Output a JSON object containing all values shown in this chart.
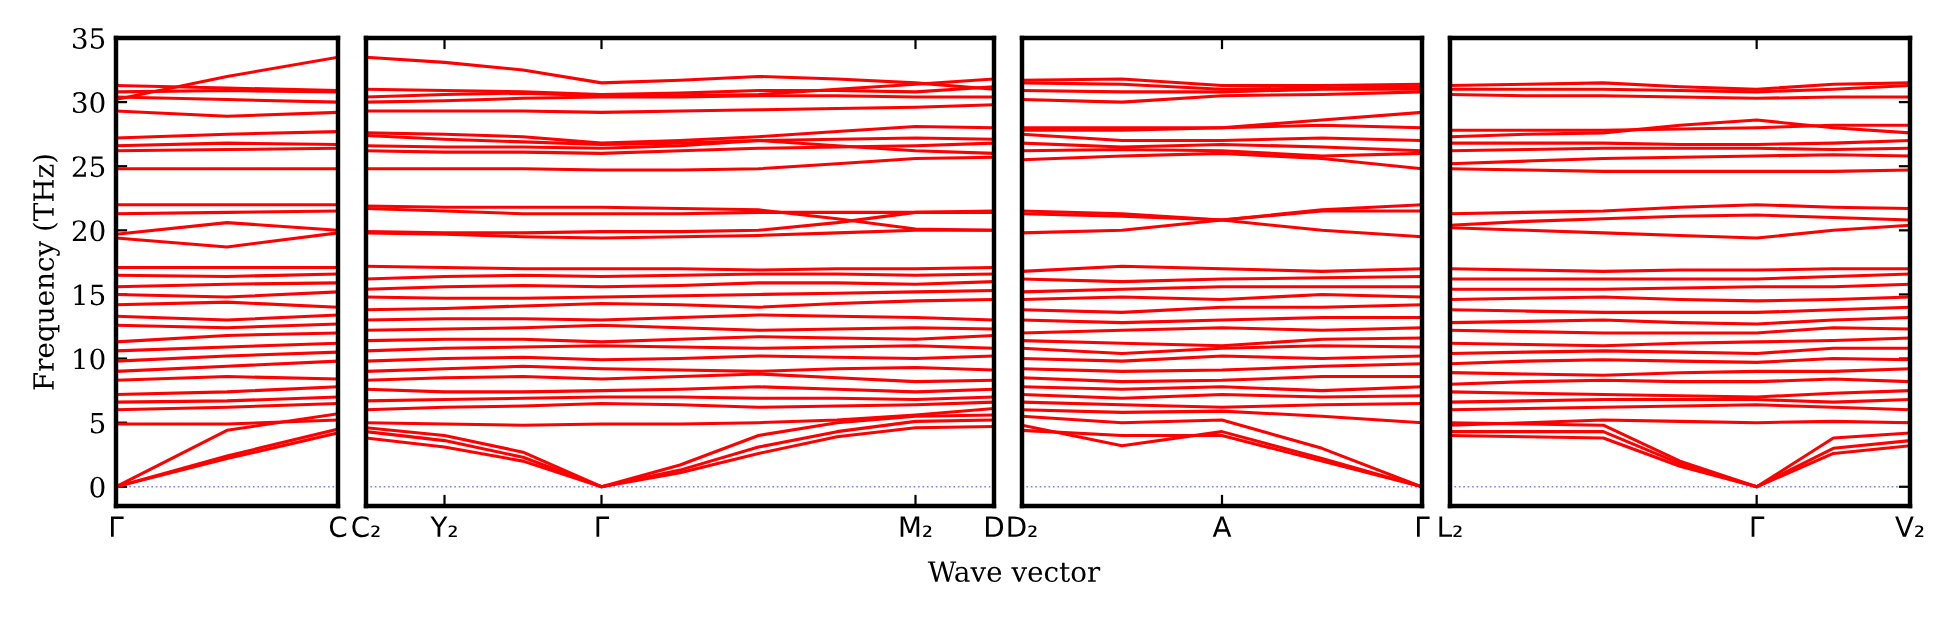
{
  "chart_data": [
    {
      "type": "line",
      "ylabel": "Frequency (THz)",
      "color": "#ff0000",
      "grid": false,
      "marker": "none",
      "line_style": "solid",
      "categories": [
        "Γ",
        null,
        "C"
      ],
      "ylim": [
        -1.5,
        35
      ],
      "yticks": [
        0,
        5,
        10,
        15,
        20,
        25,
        30,
        35
      ],
      "ref_lines": [
        {
          "axis": "y",
          "value": 0,
          "color": "#8080ff",
          "line_style": "dotted"
        }
      ],
      "series": [
        {
          "values": [
            0,
            2.2,
            4.2
          ]
        },
        {
          "values": [
            0,
            2.4,
            4.5
          ]
        },
        {
          "values": [
            0,
            4.4,
            5.7
          ]
        },
        {
          "values": [
            4.9,
            4.9,
            5.2
          ]
        },
        {
          "values": [
            6.0,
            6.2,
            6.5
          ]
        },
        {
          "values": [
            6.6,
            6.7,
            7.0
          ]
        },
        {
          "values": [
            7.2,
            7.4,
            7.8
          ]
        },
        {
          "values": [
            8.3,
            8.6,
            8.4
          ]
        },
        {
          "values": [
            9.0,
            9.4,
            9.8
          ]
        },
        {
          "values": [
            9.8,
            10.2,
            10.5
          ]
        },
        {
          "values": [
            10.6,
            10.9,
            11.2
          ]
        },
        {
          "values": [
            11.3,
            11.8,
            12.0
          ]
        },
        {
          "values": [
            12.6,
            12.4,
            12.7
          ]
        },
        {
          "values": [
            13.3,
            13.0,
            13.4
          ]
        },
        {
          "values": [
            14.2,
            14.4,
            14.0
          ]
        },
        {
          "values": [
            15.0,
            14.8,
            15.2
          ]
        },
        {
          "values": [
            15.6,
            15.8,
            15.9
          ]
        },
        {
          "values": [
            16.5,
            16.4,
            16.6
          ]
        },
        {
          "values": [
            17.1,
            17.1,
            17.1
          ]
        },
        {
          "values": [
            19.4,
            18.7,
            19.8
          ]
        },
        {
          "values": [
            19.7,
            20.6,
            20.0
          ]
        },
        {
          "values": [
            21.3,
            21.4,
            21.5
          ]
        },
        {
          "values": [
            22.0,
            22.0,
            22.0
          ]
        },
        {
          "values": [
            24.8,
            24.8,
            24.8
          ]
        },
        {
          "values": [
            26.2,
            26.3,
            26.4
          ]
        },
        {
          "values": [
            26.6,
            26.8,
            26.7
          ]
        },
        {
          "values": [
            27.2,
            27.5,
            27.7
          ]
        },
        {
          "values": [
            29.3,
            28.9,
            29.2
          ]
        },
        {
          "values": [
            30.4,
            30.2,
            30.0
          ]
        },
        {
          "values": [
            30.8,
            30.9,
            30.8
          ]
        },
        {
          "values": [
            31.3,
            31.1,
            30.9
          ]
        },
        {
          "values": [
            30.2,
            32.0,
            33.5
          ]
        }
      ]
    },
    {
      "type": "line",
      "xlabel": "Wave vector",
      "color": "#ff0000",
      "grid": false,
      "marker": "none",
      "line_style": "solid",
      "tick_labels": "x",
      "categories": [
        "C₂",
        "Y₂",
        null,
        "Γ",
        null,
        null,
        null,
        "M₂",
        "D"
      ],
      "ylim": [
        -1.5,
        35
      ],
      "yticks": [
        0,
        5,
        10,
        15,
        20,
        25,
        30,
        35
      ],
      "ref_lines": [
        {
          "axis": "y",
          "value": 0,
          "color": "#8080ff",
          "line_style": "dotted"
        }
      ],
      "series": [
        {
          "values": [
            3.8,
            3.1,
            2.0,
            0,
            1.1,
            2.6,
            3.9,
            4.6,
            4.7
          ]
        },
        {
          "values": [
            4.3,
            3.6,
            2.3,
            0,
            1.3,
            3.1,
            4.3,
            5.1,
            5.2
          ]
        },
        {
          "values": [
            4.6,
            4.0,
            2.7,
            0,
            1.7,
            4.0,
            5.0,
            5.5,
            5.6
          ]
        },
        {
          "values": [
            5.0,
            4.9,
            4.8,
            4.9,
            4.9,
            5.0,
            5.2,
            5.6,
            6.1
          ]
        },
        {
          "values": [
            6.0,
            6.2,
            6.3,
            6.5,
            6.4,
            6.2,
            6.3,
            6.4,
            6.6
          ]
        },
        {
          "values": [
            6.7,
            6.8,
            6.9,
            7.0,
            7.0,
            6.9,
            6.9,
            6.8,
            7.0
          ]
        },
        {
          "values": [
            7.6,
            7.4,
            7.4,
            7.5,
            7.6,
            7.8,
            7.6,
            7.4,
            7.6
          ]
        },
        {
          "values": [
            8.3,
            8.5,
            8.6,
            8.4,
            8.6,
            8.8,
            8.5,
            8.2,
            8.3
          ]
        },
        {
          "values": [
            9.0,
            9.2,
            9.4,
            9.2,
            9.1,
            9.0,
            9.2,
            9.3,
            9.1
          ]
        },
        {
          "values": [
            9.8,
            10.0,
            10.1,
            9.9,
            10.0,
            10.2,
            10.1,
            10.0,
            10.2
          ]
        },
        {
          "values": [
            10.6,
            10.8,
            10.9,
            11.0,
            10.9,
            10.8,
            10.9,
            11.0,
            10.8
          ]
        },
        {
          "values": [
            11.4,
            11.5,
            11.5,
            11.3,
            11.5,
            11.7,
            11.6,
            11.5,
            11.8
          ]
        },
        {
          "values": [
            12.2,
            12.3,
            12.4,
            12.6,
            12.4,
            12.2,
            12.3,
            12.4,
            12.3
          ]
        },
        {
          "values": [
            13.0,
            13.1,
            13.1,
            13.0,
            13.2,
            13.4,
            13.3,
            13.2,
            13.0
          ]
        },
        {
          "values": [
            13.8,
            13.9,
            14.1,
            14.3,
            14.2,
            14.0,
            14.3,
            14.5,
            14.6
          ]
        },
        {
          "values": [
            14.8,
            14.7,
            14.7,
            14.8,
            14.9,
            15.0,
            15.1,
            15.2,
            15.3
          ]
        },
        {
          "values": [
            15.4,
            15.6,
            15.7,
            15.6,
            15.7,
            15.9,
            15.9,
            15.8,
            16.0
          ]
        },
        {
          "values": [
            16.2,
            16.4,
            16.5,
            16.4,
            16.5,
            16.6,
            16.6,
            16.5,
            16.6
          ]
        },
        {
          "values": [
            17.2,
            17.1,
            17.0,
            17.0,
            17.0,
            16.9,
            17.0,
            17.0,
            17.1
          ]
        },
        {
          "values": [
            19.8,
            19.7,
            19.5,
            19.4,
            19.5,
            19.6,
            19.8,
            20.0,
            20.0
          ]
        },
        {
          "values": [
            19.9,
            19.8,
            19.8,
            19.9,
            19.9,
            20.0,
            20.6,
            21.4,
            21.5
          ]
        },
        {
          "values": [
            21.7,
            21.5,
            21.3,
            21.3,
            21.3,
            21.4,
            21.4,
            21.4,
            21.4
          ]
        },
        {
          "values": [
            21.9,
            21.8,
            21.8,
            21.8,
            21.7,
            21.6,
            20.9,
            20.1,
            20.0
          ]
        },
        {
          "values": [
            24.8,
            24.8,
            24.8,
            24.7,
            24.7,
            24.8,
            25.2,
            25.6,
            25.7
          ]
        },
        {
          "values": [
            26.2,
            26.1,
            26.1,
            26.0,
            26.2,
            26.4,
            26.5,
            26.6,
            26.8
          ]
        },
        {
          "values": [
            26.6,
            26.5,
            26.5,
            26.4,
            26.6,
            27.0,
            27.1,
            27.2,
            27.1
          ]
        },
        {
          "values": [
            27.4,
            27.1,
            26.9,
            26.7,
            26.8,
            27.0,
            26.6,
            26.2,
            26.0
          ]
        },
        {
          "values": [
            27.6,
            27.5,
            27.3,
            26.8,
            27.0,
            27.3,
            27.7,
            28.1,
            28.0
          ]
        },
        {
          "values": [
            29.3,
            29.3,
            29.3,
            29.2,
            29.3,
            29.4,
            29.5,
            29.6,
            29.8
          ]
        },
        {
          "values": [
            30.0,
            30.1,
            30.3,
            30.4,
            30.4,
            30.5,
            30.5,
            30.4,
            30.4
          ]
        },
        {
          "values": [
            30.4,
            30.6,
            30.7,
            30.5,
            30.5,
            30.6,
            31.0,
            31.4,
            31.8
          ]
        },
        {
          "values": [
            31.0,
            30.9,
            30.8,
            30.6,
            30.7,
            30.9,
            30.9,
            30.8,
            31.2
          ]
        },
        {
          "values": [
            33.5,
            33.1,
            32.5,
            31.5,
            31.7,
            32.0,
            31.8,
            31.5,
            31.0
          ]
        }
      ]
    },
    {
      "type": "line",
      "color": "#ff0000",
      "grid": false,
      "marker": "none",
      "line_style": "solid",
      "tick_labels": "x",
      "categories": [
        "D₂",
        null,
        "A",
        null,
        "Γ"
      ],
      "ylim": [
        -1.5,
        35
      ],
      "yticks": [
        0,
        5,
        10,
        15,
        20,
        25,
        30,
        35
      ],
      "ref_lines": [
        {
          "axis": "y",
          "value": 0,
          "color": "#8080ff",
          "line_style": "dotted"
        }
      ],
      "series": [
        {
          "values": [
            4.8,
            3.2,
            4.3,
            2.2,
            0
          ]
        },
        {
          "values": [
            4.4,
            4.0,
            4.0,
            2.0,
            0
          ]
        },
        {
          "values": [
            5.5,
            5.0,
            5.2,
            3.0,
            0
          ]
        },
        {
          "values": [
            6.0,
            5.8,
            5.9,
            5.5,
            5.0
          ]
        },
        {
          "values": [
            6.6,
            6.4,
            6.2,
            6.4,
            6.5
          ]
        },
        {
          "values": [
            7.2,
            6.9,
            7.2,
            7.0,
            7.1
          ]
        },
        {
          "values": [
            7.8,
            7.6,
            7.8,
            7.5,
            7.8
          ]
        },
        {
          "values": [
            8.5,
            8.2,
            8.3,
            8.6,
            8.6
          ]
        },
        {
          "values": [
            9.2,
            9.0,
            9.1,
            9.4,
            9.6
          ]
        },
        {
          "values": [
            10.0,
            9.8,
            10.2,
            10.0,
            10.2
          ]
        },
        {
          "values": [
            10.8,
            10.4,
            10.8,
            11.0,
            10.9
          ]
        },
        {
          "values": [
            11.4,
            11.2,
            11.0,
            11.5,
            11.6
          ]
        },
        {
          "values": [
            12.0,
            12.2,
            12.4,
            12.2,
            12.4
          ]
        },
        {
          "values": [
            13.0,
            12.8,
            13.0,
            13.2,
            13.2
          ]
        },
        {
          "values": [
            13.8,
            13.6,
            14.0,
            14.0,
            14.2
          ]
        },
        {
          "values": [
            14.6,
            14.8,
            14.6,
            15.0,
            14.8
          ]
        },
        {
          "values": [
            15.2,
            15.4,
            15.6,
            15.6,
            15.6
          ]
        },
        {
          "values": [
            16.2,
            16.0,
            16.2,
            16.3,
            16.4
          ]
        },
        {
          "values": [
            16.8,
            17.2,
            17.0,
            16.8,
            17.0
          ]
        },
        {
          "values": [
            19.8,
            20.0,
            20.8,
            21.5,
            21.5
          ]
        },
        {
          "values": [
            21.5,
            21.3,
            20.8,
            20.0,
            19.5
          ]
        },
        {
          "values": [
            21.3,
            21.1,
            20.8,
            21.6,
            22.0
          ]
        },
        {
          "values": [
            25.5,
            25.8,
            26.0,
            25.6,
            24.8
          ]
        },
        {
          "values": [
            26.2,
            26.3,
            26.2,
            25.8,
            26.0
          ]
        },
        {
          "values": [
            26.8,
            26.5,
            26.7,
            26.5,
            26.2
          ]
        },
        {
          "values": [
            27.5,
            27.0,
            27.0,
            27.2,
            27.0
          ]
        },
        {
          "values": [
            27.8,
            27.8,
            28.0,
            28.2,
            28.0
          ]
        },
        {
          "values": [
            28.0,
            28.0,
            28.0,
            28.6,
            29.2
          ]
        },
        {
          "values": [
            30.2,
            30.0,
            30.5,
            30.6,
            30.8
          ]
        },
        {
          "values": [
            30.9,
            30.8,
            30.8,
            31.0,
            31.0
          ]
        },
        {
          "values": [
            31.5,
            31.4,
            31.0,
            31.1,
            31.2
          ]
        },
        {
          "values": [
            31.7,
            31.8,
            31.3,
            31.3,
            31.4
          ]
        }
      ]
    },
    {
      "type": "line",
      "color": "#ff0000",
      "grid": false,
      "marker": "none",
      "line_style": "solid",
      "tick_labels": "x",
      "categories": [
        "L₂",
        null,
        null,
        null,
        "Γ",
        null,
        "V₂"
      ],
      "ylim": [
        -1.5,
        35
      ],
      "yticks": [
        0,
        5,
        10,
        15,
        20,
        25,
        30,
        35
      ],
      "ref_lines": [
        {
          "axis": "y",
          "value": 0,
          "color": "#8080ff",
          "line_style": "dotted"
        }
      ],
      "series": [
        {
          "values": [
            4.0,
            3.9,
            3.8,
            1.6,
            0,
            2.6,
            3.2
          ]
        },
        {
          "values": [
            4.3,
            4.3,
            4.3,
            1.8,
            0,
            3.0,
            3.6
          ]
        },
        {
          "values": [
            5.0,
            4.9,
            4.8,
            2.0,
            0,
            3.8,
            4.2
          ]
        },
        {
          "values": [
            4.8,
            5.0,
            5.2,
            5.1,
            5.0,
            5.1,
            5.0
          ]
        },
        {
          "values": [
            6.0,
            6.1,
            6.2,
            6.3,
            6.4,
            6.2,
            6.0
          ]
        },
        {
          "values": [
            6.6,
            6.7,
            6.8,
            6.8,
            6.8,
            6.6,
            6.8
          ]
        },
        {
          "values": [
            7.4,
            7.3,
            7.2,
            7.1,
            7.0,
            7.3,
            7.5
          ]
        },
        {
          "values": [
            8.0,
            8.2,
            8.3,
            8.2,
            8.2,
            8.4,
            8.2
          ]
        },
        {
          "values": [
            8.9,
            8.8,
            8.7,
            8.9,
            9.0,
            9.0,
            9.2
          ]
        },
        {
          "values": [
            9.6,
            9.8,
            9.9,
            9.8,
            9.7,
            10.0,
            9.9
          ]
        },
        {
          "values": [
            10.4,
            10.5,
            10.6,
            10.5,
            10.4,
            10.8,
            10.8
          ]
        },
        {
          "values": [
            11.2,
            11.1,
            11.0,
            11.2,
            11.3,
            11.4,
            11.6
          ]
        },
        {
          "values": [
            12.2,
            12.1,
            12.0,
            12.0,
            12.0,
            12.4,
            12.3
          ]
        },
        {
          "values": [
            12.8,
            12.9,
            13.0,
            12.8,
            12.7,
            13.0,
            13.2
          ]
        },
        {
          "values": [
            13.8,
            13.7,
            13.6,
            13.6,
            13.6,
            13.8,
            14.0
          ]
        },
        {
          "values": [
            14.6,
            14.7,
            14.8,
            14.6,
            14.5,
            14.6,
            14.8
          ]
        },
        {
          "values": [
            15.4,
            15.4,
            15.4,
            15.5,
            15.6,
            15.6,
            15.8
          ]
        },
        {
          "values": [
            16.2,
            16.2,
            16.2,
            16.2,
            16.2,
            16.4,
            16.6
          ]
        },
        {
          "values": [
            17.0,
            16.9,
            16.8,
            16.9,
            16.9,
            17.0,
            17.0
          ]
        },
        {
          "values": [
            20.2,
            20.0,
            19.8,
            19.6,
            19.4,
            20.0,
            20.4
          ]
        },
        {
          "values": [
            20.4,
            20.7,
            20.9,
            21.1,
            21.2,
            21.0,
            20.8
          ]
        },
        {
          "values": [
            21.3,
            21.4,
            21.5,
            21.8,
            22.0,
            21.8,
            21.7
          ]
        },
        {
          "values": [
            24.8,
            24.7,
            24.6,
            24.6,
            24.6,
            24.6,
            24.7
          ]
        },
        {
          "values": [
            25.2,
            25.4,
            25.6,
            25.7,
            25.8,
            25.9,
            25.8
          ]
        },
        {
          "values": [
            26.2,
            26.3,
            26.4,
            26.4,
            26.4,
            26.3,
            26.4
          ]
        },
        {
          "values": [
            26.8,
            26.8,
            26.8,
            26.7,
            26.7,
            26.8,
            27.0
          ]
        },
        {
          "values": [
            27.3,
            27.5,
            27.6,
            28.2,
            28.6,
            28.0,
            27.6
          ]
        },
        {
          "values": [
            27.8,
            27.8,
            27.8,
            27.9,
            28.0,
            28.2,
            28.2
          ]
        },
        {
          "values": [
            30.6,
            30.5,
            30.5,
            30.4,
            30.3,
            30.4,
            30.4
          ]
        },
        {
          "values": [
            31.0,
            31.0,
            31.0,
            30.9,
            30.8,
            31.0,
            31.3
          ]
        },
        {
          "values": [
            31.3,
            31.4,
            31.5,
            31.2,
            31.0,
            31.4,
            31.5
          ]
        }
      ]
    }
  ]
}
